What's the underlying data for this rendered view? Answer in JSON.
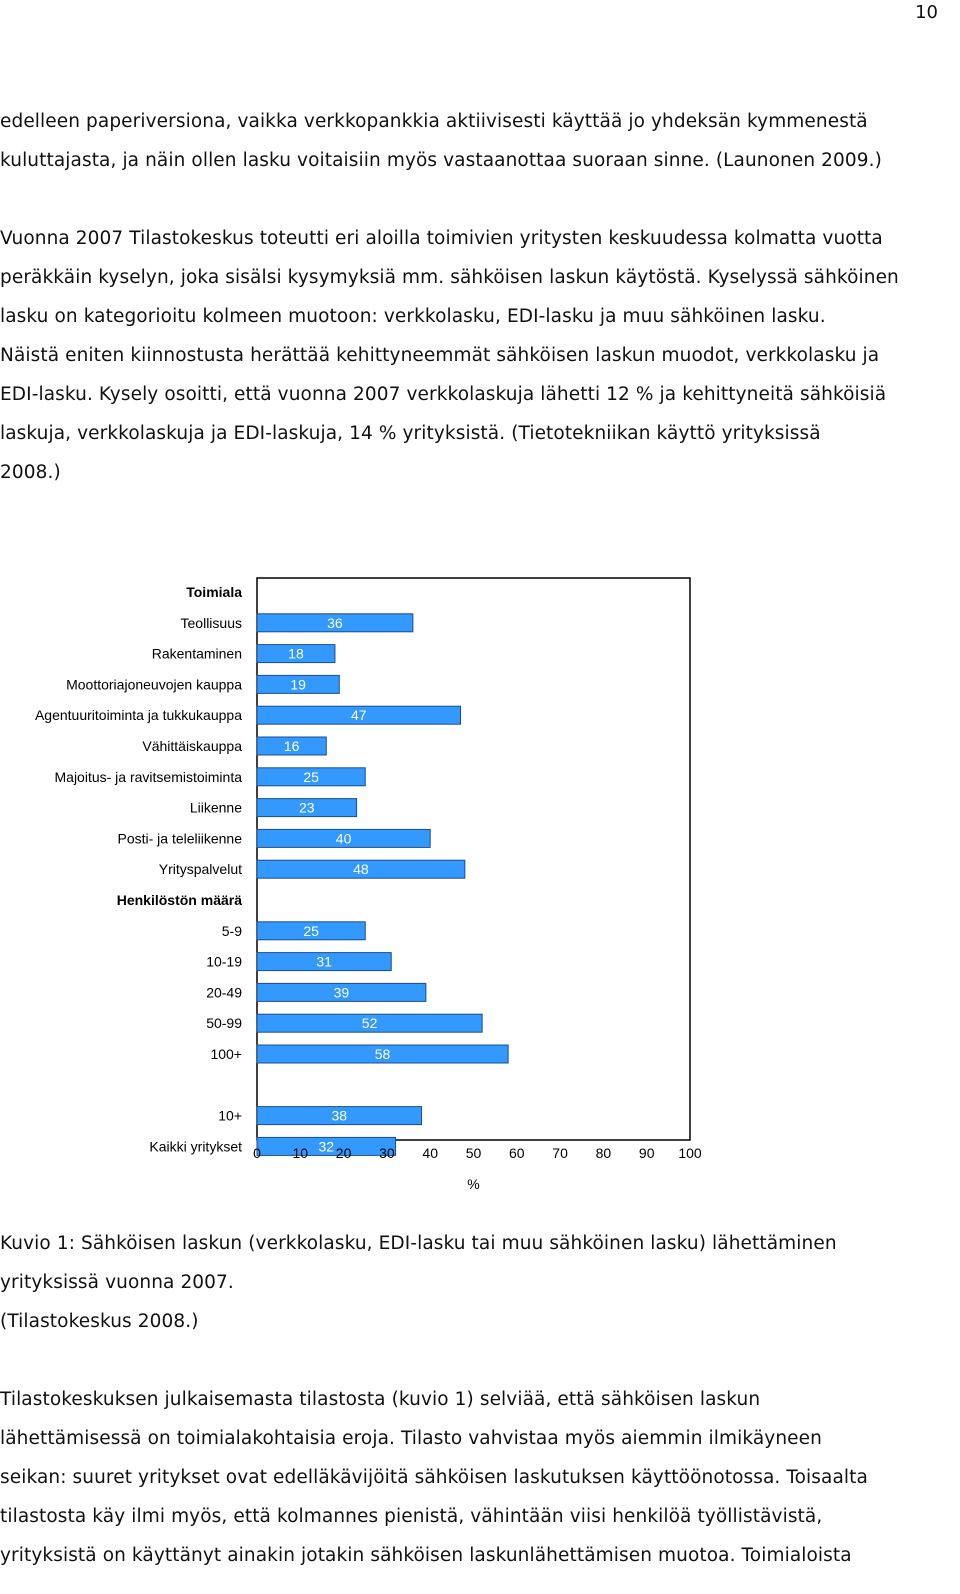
{
  "page_number": "10",
  "paragraph1": [
    "edelleen paperiversiona, vaikka verkkopankkia aktiivisesti käyttää jo yhdeksän kymmenestä",
    "kuluttajasta, ja näin ollen lasku voitaisiin myös vastaanottaa suoraan sinne. (Launonen 2009.)"
  ],
  "paragraph2": [
    "Vuonna 2007 Tilastokeskus toteutti eri aloilla toimivien yritysten keskuudessa kolmatta vuotta",
    "peräkkäin kyselyn, joka sisälsi kysymyksiä mm. sähköisen laskun käytöstä. Kyselyssä sähköinen",
    "lasku on kategorioitu kolmeen muotoon: verkkolasku, EDI-lasku ja muu sähköinen lasku.",
    "Näistä eniten kiinnostusta herättää kehittyneemmät sähköisen laskun muodot, verkkolasku ja",
    "EDI-lasku. Kysely osoitti, että vuonna 2007 verkkolaskuja lähetti 12 % ja kehittyneitä sähköisiä",
    "laskuja, verkkolaskuja ja EDI-laskuja, 14 % yrityksistä. (Tietotekniikan käyttö yrityksissä",
    "2008.)"
  ],
  "caption": [
    "Kuvio 1: Sähköisen laskun (verkkolasku, EDI-lasku tai muu sähköinen lasku) lähettäminen",
    "yrityksissä vuonna 2007.",
    "(Tilastokeskus 2008.)"
  ],
  "paragraph3": [
    "Tilastokeskuksen julkaisemasta tilastosta (kuvio 1) selviää, että sähköisen laskun",
    "lähettämisessä on toimialakohtaisia eroja. Tilasto vahvistaa myös aiemmin ilmikäyneen",
    "seikan: suuret yritykset ovat edelläkävijöitä sähköisen laskutuksen käyttöönotossa. Toisaalta",
    "tilastosta käy ilmi myös, että kolmannes pienistä, vähintään viisi henkilöä työllistävistä,",
    "yrityksistä on käyttänyt ainakin jotakin sähköisen laskunlähettämisen muotoa. Toimialoista"
  ],
  "colors": {
    "bar_fill": "#3399ff",
    "bar_stroke": "#1a4f8f",
    "grid": "#ffffff",
    "frame": "#000000"
  },
  "chart_data": {
    "type": "bar",
    "orientation": "horizontal",
    "xlabel": "%",
    "xlim": [
      0,
      100
    ],
    "xticks": [
      0,
      10,
      20,
      30,
      40,
      50,
      60,
      70,
      80,
      90,
      100
    ],
    "rows": [
      {
        "kind": "header",
        "label": "Toimiala"
      },
      {
        "kind": "bar",
        "label": "Teollisuus",
        "value": 36
      },
      {
        "kind": "bar",
        "label": "Rakentaminen",
        "value": 18
      },
      {
        "kind": "bar",
        "label": "Moottoriajoneuvojen kauppa",
        "value": 19
      },
      {
        "kind": "bar",
        "label": "Agentuuritoiminta ja tukkukauppa",
        "value": 47
      },
      {
        "kind": "bar",
        "label": "Vähittäiskauppa",
        "value": 16
      },
      {
        "kind": "bar",
        "label": "Majoitus- ja ravitsemistoiminta",
        "value": 25
      },
      {
        "kind": "bar",
        "label": "Liikenne",
        "value": 23
      },
      {
        "kind": "bar",
        "label": "Posti- ja teleliikenne",
        "value": 40
      },
      {
        "kind": "bar",
        "label": "Yrityspalvelut",
        "value": 48
      },
      {
        "kind": "header",
        "label": "Henkilöstön määrä"
      },
      {
        "kind": "bar",
        "label": "5-9",
        "value": 25
      },
      {
        "kind": "bar",
        "label": "10-19",
        "value": 31
      },
      {
        "kind": "bar",
        "label": "20-49",
        "value": 39
      },
      {
        "kind": "bar",
        "label": "50-99",
        "value": 52
      },
      {
        "kind": "bar",
        "label": "100+",
        "value": 58
      },
      {
        "kind": "gap",
        "label": ""
      },
      {
        "kind": "bar",
        "label": "10+",
        "value": 38
      },
      {
        "kind": "bar",
        "label": "Kaikki yritykset",
        "value": 32
      }
    ]
  }
}
